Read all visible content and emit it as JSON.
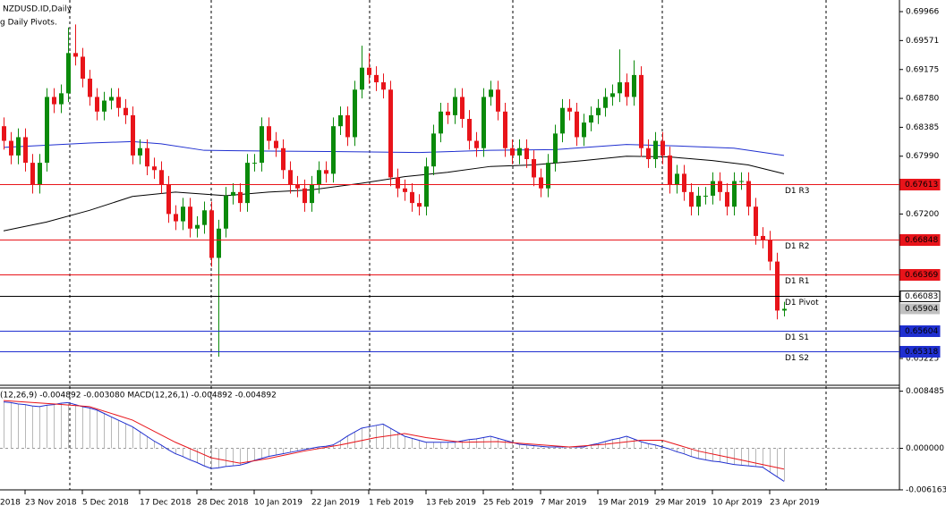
{
  "chart_data": [
    {
      "type": "candlestick",
      "title": "NZDUSD.ID,Daily",
      "indicator": "g Daily Pivots.",
      "up_color": "#0b8a0b",
      "down_color": "#e8141a",
      "ylim": [
        0.64871,
        0.70125
      ],
      "yticks": [
        0.69966,
        0.69571,
        0.69175,
        {
          "value": 0.6878,
          "label": "0.68780"
        },
        0.68385,
        {
          "value": 0.6799,
          "label": "0.67990"
        },
        {
          "value": 0.672,
          "label": "0.67200"
        },
        0.65225
      ],
      "x_labels": [
        {
          "index": 0,
          "label": "2018"
        },
        {
          "index": 4,
          "label": "23 Nov 2018"
        },
        {
          "index": 12,
          "label": "5 Dec 2018"
        },
        {
          "index": 20,
          "label": "17 Dec 2018"
        },
        {
          "index": 28,
          "label": "28 Dec 2018"
        },
        {
          "index": 36,
          "label": "10 Jan 2019"
        },
        {
          "index": 44,
          "label": "22 Jan 2019"
        },
        {
          "index": 52,
          "label": "1 Feb 2019"
        },
        {
          "index": 60,
          "label": "13 Feb 2019"
        },
        {
          "index": 68,
          "label": "25 Feb 2019"
        },
        {
          "index": 76,
          "label": "7 Mar 2019"
        },
        {
          "index": 84,
          "label": "19 Mar 2019"
        },
        {
          "index": 92,
          "label": "29 Mar 2019"
        },
        {
          "index": 100,
          "label": "10 Apr 2019"
        },
        {
          "index": 108,
          "label": "23 Apr 2019"
        }
      ],
      "open": [
        0.684,
        0.682,
        0.68,
        0.6825,
        0.679,
        0.676,
        0.679,
        0.688,
        0.687,
        0.6885,
        0.694,
        0.6935,
        0.6905,
        0.688,
        0.686,
        0.6875,
        0.688,
        0.6865,
        0.6855,
        0.68,
        0.681,
        0.6785,
        0.678,
        0.676,
        0.672,
        0.671,
        0.673,
        0.67,
        0.6705,
        0.6725,
        0.666,
        0.67,
        0.6745,
        0.675,
        0.6735,
        0.679,
        0.679,
        0.684,
        0.682,
        0.681,
        0.678,
        0.676,
        0.6755,
        0.6735,
        0.676,
        0.678,
        0.6775,
        0.684,
        0.6855,
        0.6825,
        0.689,
        0.692,
        0.691,
        0.69,
        0.689,
        0.677,
        0.6755,
        0.675,
        0.6735,
        0.673,
        0.6785,
        0.683,
        0.686,
        0.6855,
        0.688,
        0.685,
        0.682,
        0.681,
        0.688,
        0.689,
        0.686,
        0.681,
        0.68,
        0.681,
        0.6795,
        0.677,
        0.6755,
        0.679,
        0.683,
        0.6865,
        0.686,
        0.6825,
        0.6845,
        0.6855,
        0.6865,
        0.688,
        0.6885,
        0.69,
        0.688,
        0.691,
        0.681,
        0.6795,
        0.682,
        0.68,
        0.676,
        0.6775,
        0.675,
        0.673,
        0.6745,
        0.6745,
        0.6765,
        0.675,
        0.673,
        0.6765,
        0.6765,
        0.673,
        0.669,
        0.6685,
        0.6655,
        0.6588
      ],
      "high": [
        0.6852,
        0.6832,
        0.6837,
        0.6837,
        0.6802,
        0.6802,
        0.6892,
        0.6892,
        0.6897,
        0.6975,
        0.6979,
        0.6947,
        0.6917,
        0.6892,
        0.6887,
        0.6892,
        0.6892,
        0.6877,
        0.6867,
        0.6822,
        0.6822,
        0.6797,
        0.6792,
        0.6772,
        0.6732,
        0.6742,
        0.6742,
        0.6717,
        0.6737,
        0.6737,
        0.6712,
        0.6757,
        0.6762,
        0.6762,
        0.6802,
        0.6802,
        0.6852,
        0.6852,
        0.6832,
        0.6822,
        0.6792,
        0.6772,
        0.6767,
        0.6772,
        0.6792,
        0.6792,
        0.6852,
        0.6867,
        0.6867,
        0.6902,
        0.695,
        0.694,
        0.6922,
        0.6912,
        0.6902,
        0.6782,
        0.6767,
        0.6762,
        0.6747,
        0.6797,
        0.6842,
        0.6872,
        0.6872,
        0.6892,
        0.6892,
        0.6862,
        0.6832,
        0.6892,
        0.6902,
        0.6902,
        0.6872,
        0.6822,
        0.6822,
        0.6822,
        0.6807,
        0.6782,
        0.6802,
        0.6842,
        0.6877,
        0.6877,
        0.6872,
        0.6857,
        0.6867,
        0.6877,
        0.6892,
        0.6897,
        0.6945,
        0.6912,
        0.693,
        0.6922,
        0.6822,
        0.6832,
        0.6832,
        0.6812,
        0.6787,
        0.6787,
        0.6762,
        0.6757,
        0.6757,
        0.6777,
        0.6777,
        0.6762,
        0.6777,
        0.6777,
        0.6777,
        0.6742,
        0.6702,
        0.6697,
        0.6667,
        0.66
      ],
      "low": [
        0.6808,
        0.6788,
        0.6788,
        0.6778,
        0.6748,
        0.6748,
        0.6778,
        0.6858,
        0.6858,
        0.6873,
        0.6923,
        0.6893,
        0.6868,
        0.6848,
        0.6848,
        0.6863,
        0.6853,
        0.6843,
        0.6788,
        0.6788,
        0.6773,
        0.6768,
        0.6748,
        0.6708,
        0.6698,
        0.6698,
        0.6688,
        0.6688,
        0.6693,
        0.6648,
        0.6525,
        0.6688,
        0.6733,
        0.6723,
        0.6723,
        0.6778,
        0.6778,
        0.6808,
        0.6798,
        0.6768,
        0.6748,
        0.6743,
        0.6723,
        0.6723,
        0.6748,
        0.6763,
        0.6763,
        0.6828,
        0.6813,
        0.6813,
        0.6878,
        0.6898,
        0.6888,
        0.6878,
        0.6758,
        0.6743,
        0.6738,
        0.6723,
        0.6718,
        0.6718,
        0.6773,
        0.6818,
        0.6843,
        0.6843,
        0.6838,
        0.6808,
        0.6798,
        0.6798,
        0.6868,
        0.6848,
        0.6798,
        0.6788,
        0.6788,
        0.6783,
        0.6758,
        0.6743,
        0.6743,
        0.6778,
        0.6818,
        0.6848,
        0.6813,
        0.6813,
        0.6833,
        0.6843,
        0.6853,
        0.6868,
        0.6873,
        0.6868,
        0.6868,
        0.6798,
        0.6783,
        0.6783,
        0.6788,
        0.6748,
        0.6748,
        0.6738,
        0.6718,
        0.6718,
        0.6733,
        0.6733,
        0.6738,
        0.6718,
        0.6718,
        0.6753,
        0.6718,
        0.6678,
        0.6673,
        0.6643,
        0.6576,
        0.658
      ],
      "close": [
        0.682,
        0.68,
        0.6825,
        0.679,
        0.676,
        0.679,
        0.688,
        0.687,
        0.6885,
        0.694,
        0.6935,
        0.6905,
        0.688,
        0.686,
        0.6875,
        0.688,
        0.6865,
        0.6855,
        0.68,
        0.681,
        0.6785,
        0.678,
        0.676,
        0.672,
        0.671,
        0.673,
        0.67,
        0.6705,
        0.6725,
        0.666,
        0.67,
        0.6745,
        0.675,
        0.6735,
        0.679,
        0.679,
        0.684,
        0.682,
        0.681,
        0.678,
        0.676,
        0.6755,
        0.6735,
        0.676,
        0.678,
        0.6775,
        0.684,
        0.6855,
        0.6825,
        0.689,
        0.692,
        0.691,
        0.69,
        0.689,
        0.677,
        0.6755,
        0.675,
        0.6735,
        0.673,
        0.6785,
        0.683,
        0.686,
        0.6855,
        0.688,
        0.685,
        0.682,
        0.681,
        0.688,
        0.689,
        0.686,
        0.681,
        0.68,
        0.681,
        0.6795,
        0.677,
        0.6755,
        0.679,
        0.683,
        0.6865,
        0.686,
        0.6825,
        0.6845,
        0.6855,
        0.6865,
        0.688,
        0.6885,
        0.69,
        0.688,
        0.691,
        0.681,
        0.6795,
        0.682,
        0.68,
        0.676,
        0.6775,
        0.675,
        0.673,
        0.6745,
        0.6745,
        0.6765,
        0.675,
        0.673,
        0.6765,
        0.6765,
        0.673,
        0.669,
        0.6685,
        0.6655,
        0.6588,
        0.65904
      ],
      "ma": [
        {
          "color": "#1f2fd0",
          "x": [
            0,
            12,
            18,
            22,
            28,
            37,
            50,
            58,
            68,
            77,
            87,
            94,
            102,
            109
          ],
          "values": [
            0.6811,
            0.6817,
            0.6819,
            0.6816,
            0.6807,
            0.6806,
            0.6805,
            0.6804,
            0.6807,
            0.6808,
            0.6815,
            0.6813,
            0.681,
            0.68
          ]
        },
        {
          "color": "#000000",
          "x": [
            0,
            6,
            12,
            18,
            24,
            31,
            37,
            43,
            50,
            56,
            62,
            68,
            74,
            81,
            87,
            93,
            99,
            104,
            109
          ],
          "values": [
            0.6697,
            0.6709,
            0.6725,
            0.6744,
            0.675,
            0.6745,
            0.675,
            0.6753,
            0.6762,
            0.6771,
            0.6777,
            0.6785,
            0.6787,
            0.6793,
            0.6799,
            0.6798,
            0.6793,
            0.6787,
            0.6775
          ]
        }
      ],
      "pivots": [
        {
          "name": "D1 R3",
          "value": 0.67613,
          "color": "#e8141a"
        },
        {
          "name": "D1 R2",
          "value": 0.66848,
          "color": "#e8141a"
        },
        {
          "name": "D1 R1",
          "value": 0.66369,
          "color": "#e8141a"
        },
        {
          "name": "D1 Pivot",
          "value": 0.66083,
          "color": "#000000"
        },
        {
          "name": "D1 S1",
          "value": 0.65604,
          "color": "#1f2fd0"
        },
        {
          "name": "D1 S2",
          "value": 0.65318,
          "color": "#1f2fd0"
        }
      ],
      "current_price": 0.65904
    },
    {
      "type": "macd",
      "title": "(12,26,9) -0.004892 -0.003080 MACD(12,26,1) -0.004892 -0.004892",
      "ylim": [
        -0.0063,
        0.0091
      ],
      "yticks": [
        0.008485,
        {
          "value": 0,
          "label": "0.000000"
        },
        -0.006163
      ],
      "histogram_color": "#b8b8b8",
      "line_color": "#1f2fd0",
      "signal_color": "#e8141a",
      "values": [
        0.0069,
        0.0068,
        0.0066,
        0.0065,
        0.0063,
        0.0062,
        0.0064,
        0.0065,
        0.0067,
        0.0068,
        0.0065,
        0.0062,
        0.006,
        0.0057,
        0.0052,
        0.0047,
        0.0042,
        0.0037,
        0.0032,
        0.0025,
        0.0018,
        0.0011,
        0.0005,
        -0.0002,
        -0.0008,
        -0.0012,
        -0.0017,
        -0.0021,
        -0.0026,
        -0.003,
        -0.0029,
        -0.0027,
        -0.0026,
        -0.0025,
        -0.0022,
        -0.0018,
        -0.0015,
        -0.0012,
        -0.001,
        -0.0008,
        -0.0006,
        -0.0004,
        -0.0002,
        0.0,
        0.0002,
        0.0003,
        0.0005,
        0.0011,
        0.0018,
        0.0024,
        0.003,
        0.0032,
        0.0034,
        0.0036,
        0.003,
        0.0024,
        0.0018,
        0.0015,
        0.0012,
        0.0009,
        0.0009,
        0.0009,
        0.0009,
        0.0009,
        0.0011,
        0.0013,
        0.0014,
        0.0016,
        0.0018,
        0.0015,
        0.0012,
        0.0009,
        0.0006,
        0.0005,
        0.0004,
        0.0003,
        0.0002,
        0.0002,
        0.0002,
        0.0002,
        0.0002,
        0.0002,
        0.0005,
        0.0007,
        0.001,
        0.0013,
        0.0015,
        0.0018,
        0.0014,
        0.001,
        0.0007,
        0.0005,
        0.0002,
        -0.0001,
        -0.0005,
        -0.0008,
        -0.0012,
        -0.0015,
        -0.0017,
        -0.0019,
        -0.002,
        -0.0022,
        -0.0024,
        -0.0025,
        -0.0026,
        -0.0027,
        -0.0028,
        -0.0035,
        -0.0042,
        -0.004892
      ],
      "signal": {
        "x": [
          0,
          7,
          12,
          18,
          24,
          29,
          33,
          37,
          42,
          47,
          52,
          56,
          59,
          64,
          69,
          74,
          79,
          84,
          89,
          92,
          97,
          102,
          109
        ],
        "values": [
          0.0071,
          0.0066,
          0.0062,
          0.0042,
          0.0009,
          -0.0014,
          -0.0022,
          -0.0015,
          -0.0004,
          0.0005,
          0.0016,
          0.0022,
          0.0016,
          0.0009,
          0.001,
          0.0006,
          0.0002,
          0.0006,
          0.0012,
          0.0012,
          -0.0004,
          -0.0015,
          -0.00308
        ]
      }
    }
  ]
}
